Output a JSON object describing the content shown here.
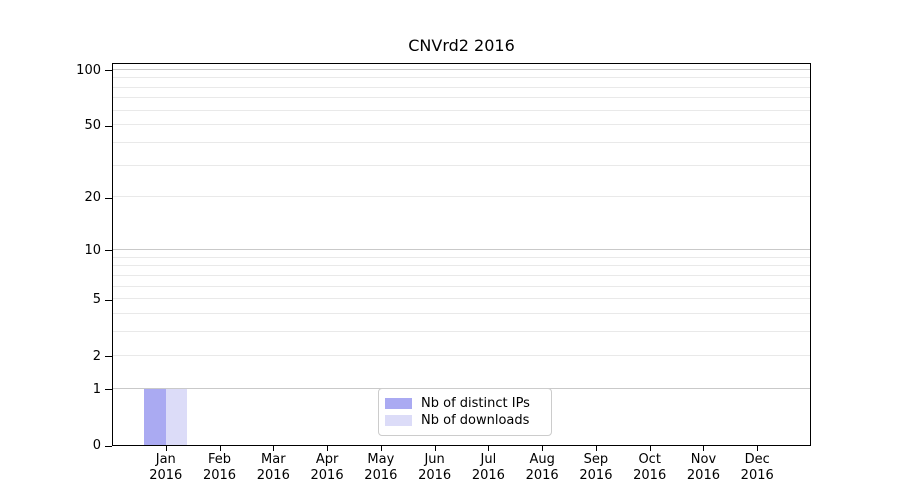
{
  "title": "CNVrd2 2016",
  "chart_data": {
    "type": "bar",
    "title": "CNVrd2 2016",
    "x_categories": [
      {
        "month": "Jan",
        "year": "2016"
      },
      {
        "month": "Feb",
        "year": "2016"
      },
      {
        "month": "Mar",
        "year": "2016"
      },
      {
        "month": "Apr",
        "year": "2016"
      },
      {
        "month": "May",
        "year": "2016"
      },
      {
        "month": "Jun",
        "year": "2016"
      },
      {
        "month": "Jul",
        "year": "2016"
      },
      {
        "month": "Aug",
        "year": "2016"
      },
      {
        "month": "Sep",
        "year": "2016"
      },
      {
        "month": "Oct",
        "year": "2016"
      },
      {
        "month": "Nov",
        "year": "2016"
      },
      {
        "month": "Dec",
        "year": "2016"
      }
    ],
    "series": [
      {
        "name": "Nb of distinct IPs",
        "color": "#aaaaf2",
        "values": [
          1,
          0,
          0,
          0,
          0,
          0,
          0,
          0,
          0,
          0,
          0,
          0
        ]
      },
      {
        "name": "Nb of downloads",
        "color": "#dcdcf8",
        "values": [
          1,
          0,
          0,
          0,
          0,
          0,
          0,
          0,
          0,
          0,
          0,
          0
        ]
      }
    ],
    "y_scale": "log(1+x)",
    "ylim": [
      0,
      110
    ],
    "y_ticks": [
      0,
      1,
      2,
      5,
      10,
      20,
      50,
      100
    ],
    "y_gridlines_major": [
      1,
      10,
      100
    ],
    "y_gridlines_minor": [
      2,
      3,
      4,
      5,
      6,
      7,
      8,
      9,
      20,
      30,
      40,
      50,
      60,
      70,
      80,
      90
    ],
    "grid": true,
    "legend_position": "bottom-center"
  },
  "colors": {
    "axis": "#000000",
    "grid_major": "#c9c9c9",
    "grid_minor": "#e9e9e9",
    "legend_border": "#cccccc",
    "background": "#ffffff"
  }
}
